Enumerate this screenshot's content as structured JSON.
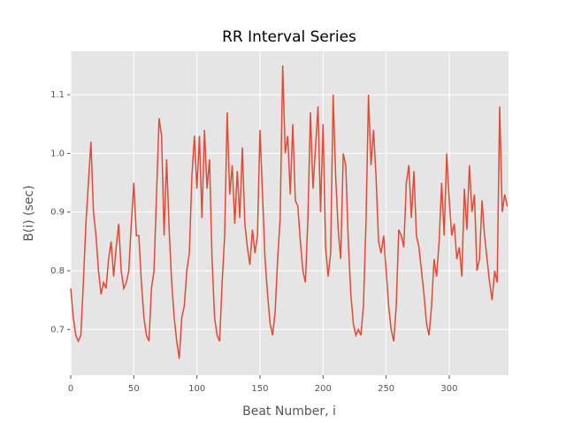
{
  "chart_data": {
    "type": "line",
    "title": "RR Interval Series",
    "x_label": "Beat Number, i",
    "y_label": "B(i) (sec)",
    "color": "#E24A33",
    "grid": true,
    "x": [
      0,
      2,
      4,
      6,
      8,
      10,
      12,
      14,
      16,
      18,
      20,
      22,
      24,
      26,
      28,
      30,
      32,
      34,
      36,
      38,
      40,
      42,
      44,
      46,
      48,
      50,
      52,
      54,
      56,
      58,
      60,
      62,
      64,
      66,
      68,
      70,
      72,
      74,
      76,
      78,
      80,
      82,
      84,
      86,
      88,
      90,
      92,
      94,
      96,
      98,
      100,
      102,
      104,
      106,
      108,
      110,
      112,
      114,
      116,
      118,
      120,
      122,
      124,
      126,
      128,
      130,
      132,
      134,
      136,
      138,
      140,
      142,
      144,
      146,
      148,
      150,
      152,
      154,
      156,
      158,
      160,
      162,
      164,
      166,
      168,
      170,
      172,
      174,
      176,
      178,
      180,
      182,
      184,
      186,
      188,
      190,
      192,
      194,
      196,
      198,
      200,
      202,
      204,
      206,
      208,
      210,
      212,
      214,
      216,
      218,
      220,
      222,
      224,
      226,
      228,
      230,
      232,
      234,
      236,
      238,
      240,
      242,
      244,
      246,
      248,
      250,
      252,
      254,
      256,
      258,
      260,
      262,
      264,
      266,
      268,
      270,
      272,
      274,
      276,
      278,
      280,
      282,
      284,
      286,
      288,
      290,
      292,
      294,
      296,
      298,
      300,
      302,
      304,
      306,
      308,
      310,
      312,
      314,
      316,
      318,
      320,
      322,
      324,
      326,
      328,
      330,
      332,
      334,
      336,
      338,
      340,
      342,
      344,
      346
    ],
    "values": [
      0.77,
      0.72,
      0.69,
      0.68,
      0.69,
      0.78,
      0.88,
      0.95,
      1.02,
      0.9,
      0.86,
      0.8,
      0.76,
      0.78,
      0.77,
      0.82,
      0.85,
      0.79,
      0.84,
      0.88,
      0.8,
      0.77,
      0.78,
      0.8,
      0.88,
      0.95,
      0.86,
      0.86,
      0.78,
      0.72,
      0.69,
      0.68,
      0.77,
      0.8,
      0.93,
      1.06,
      1.03,
      0.86,
      0.99,
      0.87,
      0.78,
      0.72,
      0.68,
      0.65,
      0.72,
      0.74,
      0.8,
      0.83,
      0.96,
      1.03,
      0.94,
      1.03,
      0.89,
      1.04,
      0.94,
      0.99,
      0.82,
      0.72,
      0.69,
      0.68,
      0.78,
      0.86,
      1.07,
      0.93,
      0.98,
      0.88,
      0.97,
      0.89,
      1.01,
      0.88,
      0.84,
      0.81,
      0.87,
      0.83,
      0.86,
      1.04,
      0.93,
      0.82,
      0.76,
      0.71,
      0.69,
      0.73,
      0.82,
      0.89,
      1.15,
      1.0,
      1.03,
      0.93,
      1.05,
      0.92,
      0.91,
      0.85,
      0.8,
      0.78,
      0.89,
      1.07,
      0.94,
      1.01,
      1.08,
      0.9,
      1.05,
      0.84,
      0.79,
      0.83,
      1.1,
      0.96,
      0.87,
      0.82,
      1.0,
      0.98,
      0.85,
      0.76,
      0.71,
      0.69,
      0.7,
      0.69,
      0.74,
      0.88,
      1.1,
      0.98,
      1.04,
      0.96,
      0.85,
      0.83,
      0.86,
      0.8,
      0.74,
      0.7,
      0.68,
      0.74,
      0.87,
      0.86,
      0.84,
      0.95,
      0.98,
      0.89,
      0.97,
      0.86,
      0.84,
      0.8,
      0.76,
      0.71,
      0.69,
      0.74,
      0.82,
      0.79,
      0.85,
      0.95,
      0.86,
      1.0,
      0.92,
      0.86,
      0.88,
      0.82,
      0.84,
      0.79,
      0.94,
      0.87,
      0.98,
      0.9,
      0.93,
      0.8,
      0.82,
      0.92,
      0.86,
      0.82,
      0.78,
      0.75,
      0.8,
      0.78,
      1.08,
      0.9,
      0.93,
      0.91
    ],
    "xlim": [
      0,
      347
    ],
    "xticks": [
      0,
      50,
      100,
      150,
      200,
      250,
      300
    ],
    "ylim": [
      0.622,
      1.174
    ],
    "yticks": [
      0.7,
      0.8,
      0.9,
      {
        "value": 1,
        "label": "1.0"
      },
      1.1
    ]
  }
}
